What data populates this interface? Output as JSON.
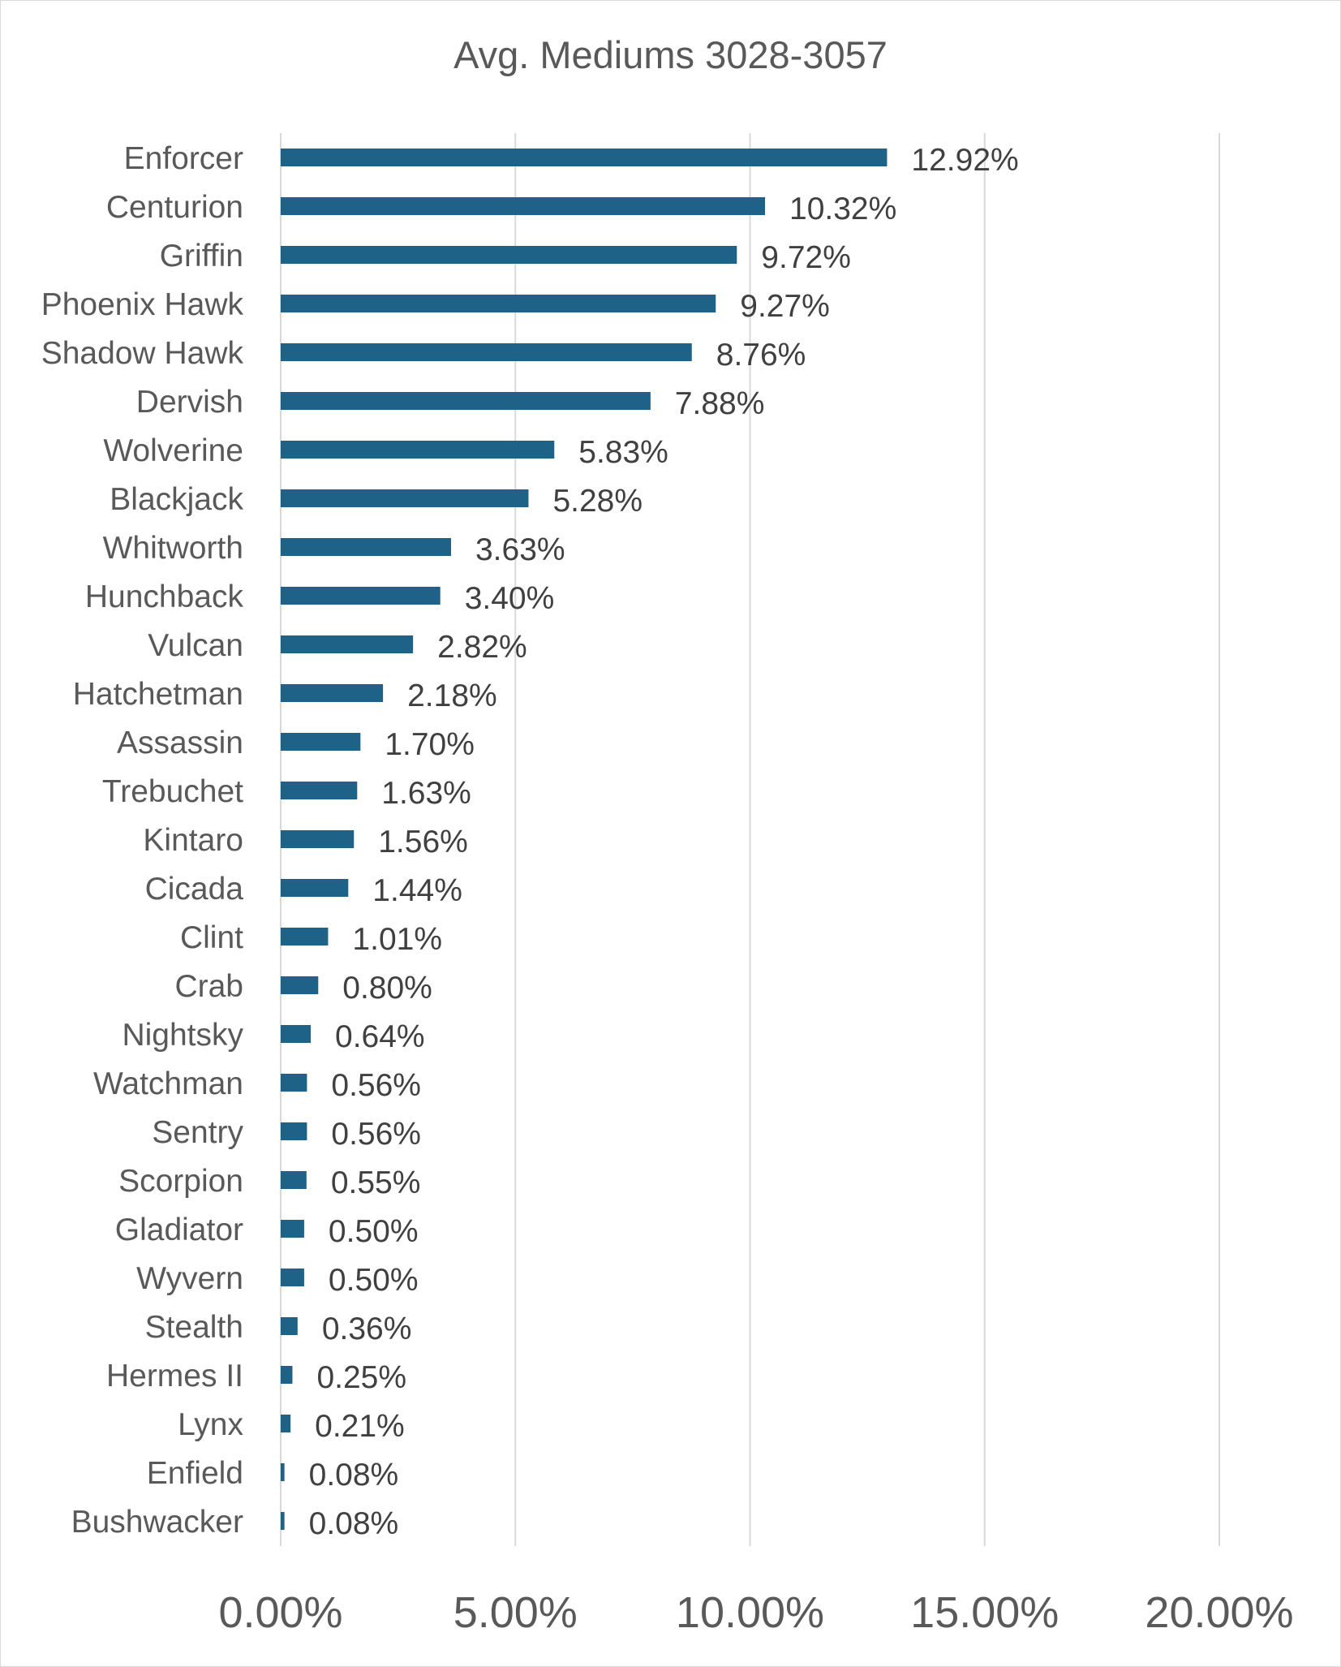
{
  "chart_data": {
    "type": "bar",
    "orientation": "horizontal",
    "title": "Avg. Mediums 3028-3057",
    "xlabel": "",
    "ylabel": "",
    "xlim": [
      0,
      20
    ],
    "x_ticks": [
      "0.00%",
      "5.00%",
      "10.00%",
      "15.00%",
      "20.00%"
    ],
    "grid": true,
    "legend": "none",
    "bar_color": "#1f6287",
    "categories": [
      "Enforcer",
      "Centurion",
      "Griffin",
      "Phoenix Hawk",
      "Shadow Hawk",
      "Dervish",
      "Wolverine",
      "Blackjack",
      "Whitworth",
      "Hunchback",
      "Vulcan",
      "Hatchetman",
      "Assassin",
      "Trebuchet",
      "Kintaro",
      "Cicada",
      "Clint",
      "Crab",
      "Nightsky",
      "Watchman",
      "Sentry",
      "Scorpion",
      "Gladiator",
      "Wyvern",
      "Stealth",
      "Hermes II",
      "Lynx",
      "Enfield",
      "Bushwacker"
    ],
    "values": [
      12.92,
      10.32,
      9.72,
      9.27,
      8.76,
      7.88,
      5.83,
      5.28,
      3.63,
      3.4,
      2.82,
      2.18,
      1.7,
      1.63,
      1.56,
      1.44,
      1.01,
      0.8,
      0.64,
      0.56,
      0.56,
      0.55,
      0.5,
      0.5,
      0.36,
      0.25,
      0.21,
      0.08,
      0.08
    ],
    "data_labels": [
      "12.92%",
      "10.32%",
      "9.72%",
      "9.27%",
      "8.76%",
      "7.88%",
      "5.83%",
      "5.28%",
      "3.63%",
      "3.40%",
      "2.82%",
      "2.18%",
      "1.70%",
      "1.63%",
      "1.56%",
      "1.44%",
      "1.01%",
      "0.80%",
      "0.64%",
      "0.56%",
      "0.56%",
      "0.55%",
      "0.50%",
      "0.50%",
      "0.36%",
      "0.25%",
      "0.21%",
      "0.08%",
      "0.08%"
    ]
  }
}
